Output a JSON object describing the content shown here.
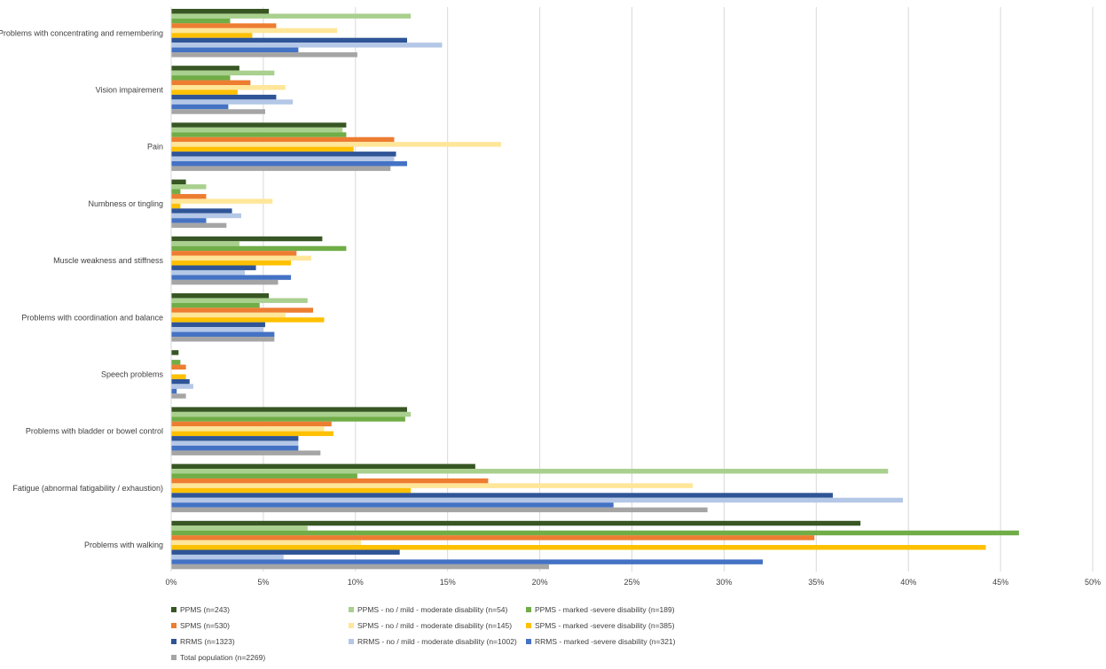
{
  "chart_data": {
    "type": "bar",
    "orientation": "horizontal",
    "title": "",
    "xlabel": "",
    "ylabel": "",
    "xlim": [
      0,
      0.5
    ],
    "tick_format": "percent",
    "x_ticks": [
      "0%",
      "5%",
      "10%",
      "15%",
      "20%",
      "25%",
      "30%",
      "35%",
      "40%",
      "45%",
      "50%"
    ],
    "grid": true,
    "legend_position": "bottom",
    "categories": [
      "Problems with concentrating and remembering",
      "Vision impairement",
      "Pain",
      "Numbness or tingling",
      "Muscle weakness and stiffness",
      "Problems with coordination and balance",
      "Speech problems",
      "Problems with bladder or bowel control",
      "Fatigue (abnormal fatigability / exhaustion)",
      "Problems with walking"
    ],
    "series": [
      {
        "name": "PPMS (n=243)",
        "color": "#375623",
        "values": [
          0.053,
          0.037,
          0.095,
          0.008,
          0.082,
          0.053,
          0.004,
          0.128,
          0.165,
          0.374
        ]
      },
      {
        "name": "PPMS - no / mild - moderate disability (n=54)",
        "color": "#a9d08e",
        "values": [
          0.13,
          0.056,
          0.093,
          0.019,
          0.037,
          0.074,
          0.0,
          0.13,
          0.389,
          0.074
        ]
      },
      {
        "name": "PPMS - marked -severe disability (n=189)",
        "color": "#70ad47",
        "values": [
          0.032,
          0.032,
          0.095,
          0.005,
          0.095,
          0.048,
          0.005,
          0.127,
          0.101,
          0.46
        ]
      },
      {
        "name": "SPMS (n=530)",
        "color": "#ed7d31",
        "values": [
          0.057,
          0.043,
          0.121,
          0.019,
          0.068,
          0.077,
          0.008,
          0.087,
          0.172,
          0.349
        ]
      },
      {
        "name": "SPMS - no / mild - moderate disability (n=145)",
        "color": "#ffe699",
        "values": [
          0.09,
          0.062,
          0.179,
          0.055,
          0.076,
          0.062,
          0.0,
          0.083,
          0.283,
          0.103
        ]
      },
      {
        "name": "SPMS - marked -severe disability (n=385)",
        "color": "#ffc000",
        "values": [
          0.044,
          0.036,
          0.099,
          0.005,
          0.065,
          0.083,
          0.008,
          0.088,
          0.13,
          0.442
        ]
      },
      {
        "name": "RRMS (n=1323)",
        "color": "#2f5597",
        "values": [
          0.128,
          0.057,
          0.122,
          0.033,
          0.046,
          0.051,
          0.01,
          0.069,
          0.359,
          0.124
        ]
      },
      {
        "name": "RRMS - no / mild - moderate disability (n=1002)",
        "color": "#b4c7e7",
        "values": [
          0.147,
          0.066,
          0.121,
          0.038,
          0.04,
          0.05,
          0.012,
          0.069,
          0.397,
          0.061
        ]
      },
      {
        "name": "RRMS - marked -severe disability (n=321)",
        "color": "#4472c4",
        "values": [
          0.069,
          0.031,
          0.128,
          0.019,
          0.065,
          0.056,
          0.003,
          0.069,
          0.24,
          0.321
        ]
      },
      {
        "name": "Total population (n=2269)",
        "color": "#a5a5a5",
        "values": [
          0.101,
          0.051,
          0.119,
          0.03,
          0.058,
          0.056,
          0.008,
          0.081,
          0.291,
          0.205
        ]
      }
    ]
  }
}
